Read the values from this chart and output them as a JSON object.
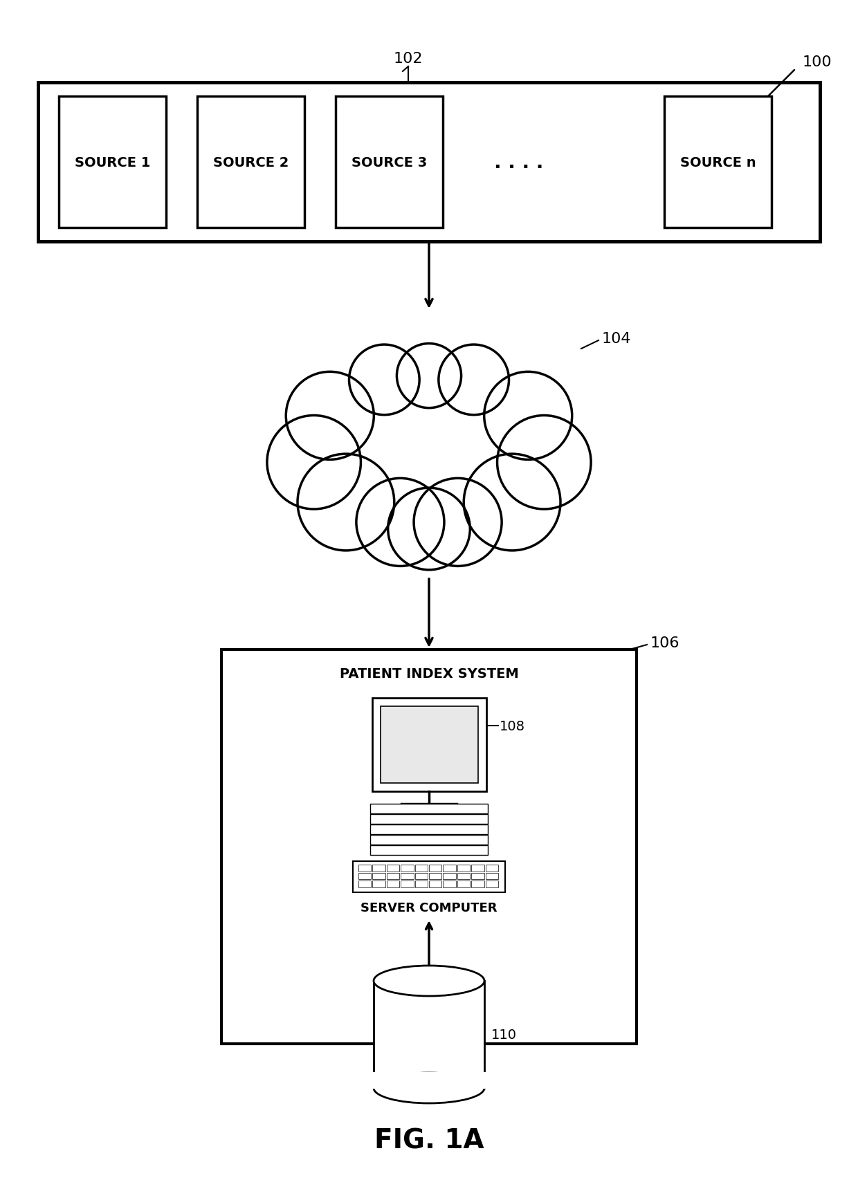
{
  "bg_color": "#ffffff",
  "line_color": "#000000",
  "fig_label": "FIG. 1A",
  "ref_100": "100",
  "ref_102": "102",
  "ref_104": "104",
  "ref_106": "106",
  "ref_108": "108",
  "ref_110": "110",
  "sources": [
    "SOURCE 1",
    "SOURCE 2",
    "SOURCE 3",
    "SOURCE n"
  ],
  "dots_text": ". . . .",
  "patient_index_label": "PATIENT INDEX SYSTEM",
  "server_label": "SERVER COMPUTER"
}
